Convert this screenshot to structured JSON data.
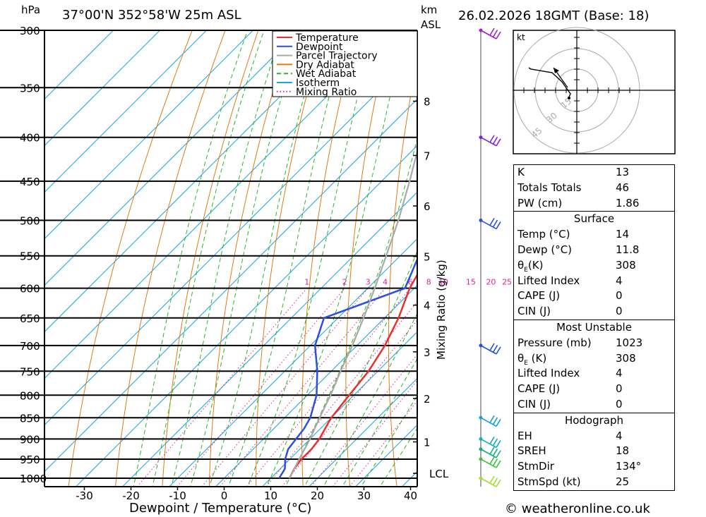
{
  "header": {
    "location": "37°00'N  352°58'W  25m  ASL",
    "datetime": "26.02.2026  18GMT  (Base: 18)",
    "unit_hpa": "hPa",
    "unit_km": "km",
    "unit_asl": "ASL"
  },
  "footer": {
    "copyright": "© weatheronline.co.uk"
  },
  "legend": {
    "items": [
      {
        "label": "Temperature",
        "color": "#e8312f"
      },
      {
        "label": "Dewpoint",
        "color": "#2d4fe0"
      },
      {
        "label": "Parcel Trajectory",
        "color": "#a9a9a9"
      },
      {
        "label": "Dry Adiabat",
        "color": "#e07b10"
      },
      {
        "label": "Wet Adiabat",
        "color": "#22bb22"
      },
      {
        "label": "Isotherm",
        "color": "#1aa7e0"
      },
      {
        "label": "Mixing Ratio",
        "color": "#e020a0"
      }
    ]
  },
  "chart_data": {
    "type": "line",
    "title": "",
    "xlabel": "Dewpoint / Temperature (°C)",
    "ylabel": "hPa",
    "xlim": [
      -40,
      40
    ],
    "pressure_levels": [
      300,
      350,
      400,
      450,
      500,
      550,
      600,
      650,
      700,
      750,
      800,
      850,
      900,
      950,
      1000
    ],
    "x_ticks": [
      -30,
      -20,
      -10,
      0,
      10,
      20,
      30,
      40
    ],
    "km_ticks": [
      {
        "km": "1",
        "p": 907
      },
      {
        "km": "2",
        "p": 807
      },
      {
        "km": "3",
        "p": 712
      },
      {
        "km": "4",
        "p": 628
      },
      {
        "km": "5",
        "p": 551
      },
      {
        "km": "6",
        "p": 481
      },
      {
        "km": "7",
        "p": 420
      },
      {
        "km": "8",
        "p": 363
      }
    ],
    "lcl": {
      "label": "LCL",
      "p": 987
    },
    "mixing_ratio_label": "Mixing Ratio (g/kg)",
    "mixing_ratio_values": [
      "1",
      "2",
      "3",
      "4",
      "6",
      "8",
      "10",
      "15",
      "20",
      "25"
    ],
    "series": [
      {
        "name": "Temperature",
        "p": [
          1000,
          975,
          950,
          925,
          900,
          875,
          850,
          800,
          750,
          700,
          650,
          600,
          550,
          500,
          450,
          400,
          350,
          300
        ],
        "t": [
          14,
          13,
          12.5,
          12.5,
          12,
          11,
          10,
          9,
          8,
          6,
          3,
          -1,
          -4,
          -7,
          -12,
          -18,
          -24,
          -31
        ]
      },
      {
        "name": "Dewpoint",
        "p": [
          1000,
          975,
          950,
          925,
          900,
          875,
          850,
          800,
          750,
          700,
          650,
          600,
          550,
          500,
          450,
          400,
          350,
          300
        ],
        "t": [
          11.8,
          11,
          9,
          7.5,
          7,
          6.5,
          5.5,
          2,
          -3,
          -9,
          -13,
          -2,
          -6,
          -10,
          -14,
          -21,
          -34,
          -45
        ]
      },
      {
        "name": "Parcel Trajectory",
        "p": [
          1000,
          987,
          950,
          900,
          850,
          800,
          750,
          700,
          650,
          600,
          550,
          500,
          450,
          400,
          350,
          300
        ],
        "t": [
          14,
          13.5,
          12,
          10,
          7.5,
          5,
          2,
          -1,
          -4.5,
          -8.5,
          -13,
          -18,
          -24,
          -31,
          -39,
          -48
        ]
      }
    ]
  },
  "wind_barbs": [
    {
      "p": 300,
      "color": "#a020d0"
    },
    {
      "p": 400,
      "color": "#8020e0"
    },
    {
      "p": 500,
      "color": "#3050e0"
    },
    {
      "p": 700,
      "color": "#2050e0"
    },
    {
      "p": 850,
      "color": "#10a0e0"
    },
    {
      "p": 900,
      "color": "#10b0c0"
    },
    {
      "p": 925,
      "color": "#10b080"
    },
    {
      "p": 950,
      "color": "#40c040"
    },
    {
      "p": 1000,
      "color": "#a0e030"
    }
  ],
  "hodograph": {
    "unit": "kt",
    "ring_labels": [
      "15",
      "30",
      "45"
    ]
  },
  "indices": {
    "k_label": "K",
    "k": "13",
    "tt_label": "Totals Totals",
    "tt": "46",
    "pw_label": "PW (cm)",
    "pw": "1.86"
  },
  "surface": {
    "title": "Surface",
    "temp_label": "Temp (°C)",
    "temp": "14",
    "dewp_label": "Dewp (°C)",
    "dewp": "11.8",
    "theta_label_main": "θ",
    "theta_label_sub": "E",
    "theta_label_tail": "(K)",
    "theta": "308",
    "li_label": "Lifted Index",
    "li": "4",
    "cape_label": "CAPE (J)",
    "cape": "0",
    "cin_label": "CIN (J)",
    "cin": "0"
  },
  "most_unstable": {
    "title": "Most Unstable",
    "pres_label": "Pressure (mb)",
    "pres": "1023",
    "theta_label_main": "θ",
    "theta_label_sub": "E",
    "theta_label_tail": " (K)",
    "theta": "308",
    "li_label": "Lifted Index",
    "li": "4",
    "cape_label": "CAPE (J)",
    "cape": "0",
    "cin_label": "CIN (J)",
    "cin": "0"
  },
  "hodo_table": {
    "title": "Hodograph",
    "eh_label": "EH",
    "eh": "4",
    "sreh_label": "SREH",
    "sreh": "18",
    "stmdir_label": "StmDir",
    "stmdir": "134°",
    "stmspd_label": "StmSpd (kt)",
    "stmspd": "25"
  }
}
